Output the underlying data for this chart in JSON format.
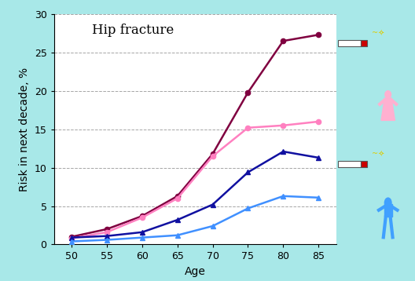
{
  "title": "Hip fracture",
  "xlabel": "Age",
  "ylabel": "Risk in next decade, %",
  "ages": [
    50,
    55,
    60,
    65,
    70,
    75,
    80,
    85
  ],
  "female_smoker": [
    1.0,
    2.0,
    3.7,
    6.3,
    11.8,
    19.8,
    26.5,
    27.3
  ],
  "female_nonsmoker": [
    0.8,
    1.6,
    3.5,
    6.0,
    11.5,
    15.2,
    15.5,
    16.0
  ],
  "male_smoker": [
    0.9,
    1.1,
    1.6,
    3.2,
    5.2,
    9.4,
    12.1,
    11.3
  ],
  "male_nonsmoker": [
    0.4,
    0.6,
    0.9,
    1.2,
    2.4,
    4.7,
    6.3,
    6.1
  ],
  "color_female_smoker": "#800040",
  "color_female_nonsmoker": "#FF80C0",
  "color_male_smoker": "#1010A0",
  "color_male_nonsmoker": "#4090FF",
  "ylim": [
    0,
    30
  ],
  "yticks": [
    0,
    5,
    10,
    15,
    20,
    25,
    30
  ],
  "xticks": [
    50,
    55,
    60,
    65,
    70,
    75,
    80,
    85
  ],
  "background_outer": "#A8E8E8",
  "background_plot": "#FFFFFF",
  "title_fontsize": 12,
  "axis_label_fontsize": 10,
  "tick_fontsize": 9
}
